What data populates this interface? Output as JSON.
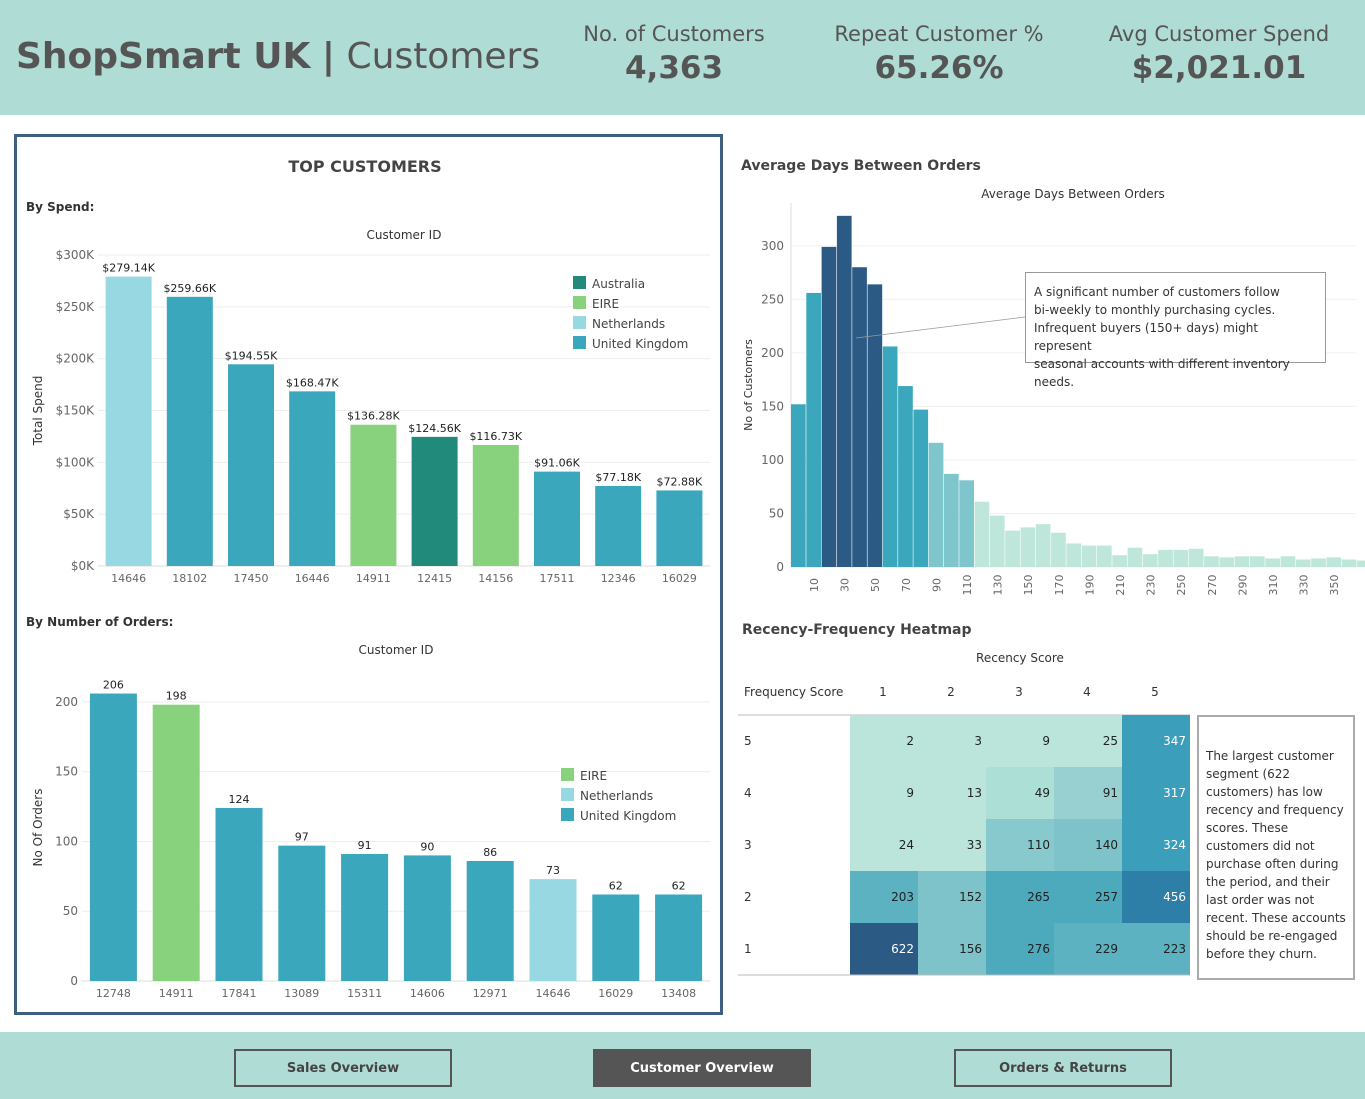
{
  "header": {
    "brand": "ShopSmart UK",
    "separator": "|",
    "page": "Customers",
    "kpis": [
      {
        "label": "No. of Customers",
        "value": "4,363"
      },
      {
        "label": "Repeat Customer %",
        "value": "65.26%"
      },
      {
        "label": "Avg Customer Spend",
        "value": "$2,021.01"
      }
    ]
  },
  "colors": {
    "australia": "#218a7a",
    "eire": "#88d27e",
    "netherlands": "#97d8e2",
    "uk": "#3aa7bc",
    "header_bg": "#afdcd4"
  },
  "top_customers": {
    "title": "TOP CUSTOMERS",
    "by_spend_label": "By Spend:",
    "by_orders_label": "By Number of Orders:"
  },
  "chart_data": [
    {
      "type": "bar",
      "id": "spend",
      "title": "Customer ID",
      "ylabel": "Total Spend",
      "ylim": [
        0,
        300000
      ],
      "yticks": [
        "$0K",
        "$50K",
        "$100K",
        "$150K",
        "$200K",
        "$250K",
        "$300K"
      ],
      "categories": [
        "14646",
        "18102",
        "17450",
        "16446",
        "14911",
        "12415",
        "14156",
        "17511",
        "12346",
        "16029"
      ],
      "values": [
        279140,
        259660,
        194550,
        168470,
        136280,
        124560,
        116730,
        91060,
        77180,
        72880
      ],
      "labels": [
        "$279.14K",
        "$259.66K",
        "$194.55K",
        "$168.47K",
        "$136.28K",
        "$124.56K",
        "$116.73K",
        "$91.06K",
        "$77.18K",
        "$72.88K"
      ],
      "countries": [
        "Netherlands",
        "United Kingdom",
        "United Kingdom",
        "United Kingdom",
        "EIRE",
        "Australia",
        "EIRE",
        "United Kingdom",
        "United Kingdom",
        "United Kingdom"
      ],
      "legend": [
        "Australia",
        "EIRE",
        "Netherlands",
        "United Kingdom"
      ]
    },
    {
      "type": "bar",
      "id": "orders",
      "title": "Customer ID",
      "ylabel": "No Of Orders",
      "ylim": [
        0,
        220
      ],
      "yticks": [
        "0",
        "50",
        "100",
        "150",
        "200"
      ],
      "categories": [
        "12748",
        "14911",
        "17841",
        "13089",
        "15311",
        "14606",
        "12971",
        "14646",
        "16029",
        "13408"
      ],
      "values": [
        206,
        198,
        124,
        97,
        91,
        90,
        86,
        73,
        62,
        62
      ],
      "labels": [
        "206",
        "198",
        "124",
        "97",
        "91",
        "90",
        "86",
        "73",
        "62",
        "62"
      ],
      "countries": [
        "United Kingdom",
        "EIRE",
        "United Kingdom",
        "United Kingdom",
        "United Kingdom",
        "United Kingdom",
        "United Kingdom",
        "Netherlands",
        "United Kingdom",
        "United Kingdom"
      ],
      "legend": [
        "EIRE",
        "Netherlands",
        "United Kingdom"
      ]
    },
    {
      "type": "histogram",
      "id": "days",
      "section_title": "Average Days Between Orders",
      "title": "Average Days Between Orders",
      "ylabel": "No of Customers",
      "ylim": [
        0,
        340
      ],
      "yticks": [
        "0",
        "50",
        "100",
        "150",
        "200",
        "250",
        "300"
      ],
      "xticks": [
        "10",
        "30",
        "50",
        "70",
        "90",
        "110",
        "130",
        "150",
        "170",
        "190",
        "210",
        "230",
        "250",
        "270",
        "290",
        "310",
        "330",
        "350"
      ],
      "bin_width": 10,
      "bins_start": 0,
      "values": [
        152,
        256,
        299,
        328,
        280,
        264,
        206,
        169,
        147,
        116,
        87,
        81,
        61,
        48,
        34,
        37,
        40,
        32,
        22,
        20,
        20,
        11,
        18,
        12,
        16,
        16,
        17,
        10,
        9,
        10,
        10,
        8,
        10,
        7,
        8,
        9,
        7,
        6,
        3,
        12,
        11,
        7
      ],
      "annotation": [
        "A significant number of customers follow",
        "bi-weekly to monthly purchasing cycles.",
        "Infrequent buyers (150+ days) might represent",
        "seasonal accounts with different inventory needs."
      ]
    },
    {
      "type": "heatmap",
      "id": "rf",
      "section_title": "Recency-Frequency Heatmap",
      "xlabel": "Recency Score",
      "ylabel": "Frequency Score",
      "x_categories": [
        "1",
        "2",
        "3",
        "4",
        "5"
      ],
      "y_categories": [
        "5",
        "4",
        "3",
        "2",
        "1"
      ],
      "values": [
        [
          2,
          3,
          9,
          25,
          347
        ],
        [
          9,
          13,
          49,
          91,
          317
        ],
        [
          24,
          33,
          110,
          140,
          324
        ],
        [
          203,
          152,
          265,
          257,
          456
        ],
        [
          622,
          156,
          276,
          229,
          223
        ]
      ],
      "note": "The largest customer segment (622 customers) has low recency and frequency scores. These customers did not purchase often during the period, and their last order was not recent. These accounts should be re-engaged before they churn."
    }
  ],
  "footer": {
    "buttons": [
      {
        "label": "Sales Overview",
        "active": false
      },
      {
        "label": "Customer Overview",
        "active": true
      },
      {
        "label": "Orders & Returns",
        "active": false
      }
    ]
  }
}
